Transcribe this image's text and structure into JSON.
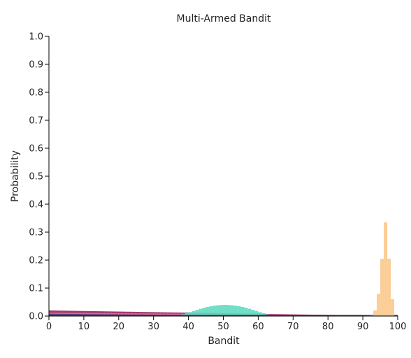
{
  "chart_data": {
    "type": "bar",
    "title": "Multi-Armed Bandit",
    "xlabel": "Bandit",
    "ylabel": "Probability",
    "xlim": [
      0,
      100
    ],
    "ylim": [
      0,
      1
    ],
    "x_ticks": [
      "0",
      "10",
      "20",
      "30",
      "40",
      "50",
      "60",
      "70",
      "80",
      "90",
      "100"
    ],
    "y_ticks": [
      "0.0",
      "0.1",
      "0.2",
      "0.3",
      "0.4",
      "0.5",
      "0.6",
      "0.7",
      "0.8",
      "0.9",
      "1.0"
    ],
    "grid": false,
    "legend": "none",
    "categories": [
      0,
      1,
      2,
      3,
      4,
      5,
      6,
      7,
      8,
      9,
      10,
      11,
      12,
      13,
      14,
      15,
      16,
      17,
      18,
      19,
      20,
      21,
      22,
      23,
      24,
      25,
      26,
      27,
      28,
      29,
      30,
      31,
      32,
      33,
      34,
      35,
      36,
      37,
      38,
      39,
      40,
      41,
      42,
      43,
      44,
      45,
      46,
      47,
      48,
      49,
      50,
      51,
      52,
      53,
      54,
      55,
      56,
      57,
      58,
      59,
      60,
      61,
      62,
      63,
      64,
      65,
      66,
      67,
      68,
      69,
      70,
      71,
      72,
      73,
      74,
      75,
      76,
      77,
      78,
      79,
      80,
      81,
      82,
      83,
      84,
      85,
      86,
      87,
      88,
      89,
      90,
      91,
      92,
      93,
      94,
      95,
      96,
      97,
      98,
      99
    ],
    "series": [
      {
        "color": "#9b2258",
        "values": [
          0.02,
          0.0198,
          0.0196,
          0.0194,
          0.0192,
          0.019,
          0.0188,
          0.0186,
          0.0184,
          0.0182,
          0.018,
          0.0178,
          0.0176,
          0.0174,
          0.0172,
          0.017,
          0.0168,
          0.0166,
          0.0164,
          0.0162,
          0.016,
          0.0158,
          0.0156,
          0.0154,
          0.0152,
          0.015,
          0.0148,
          0.0146,
          0.0144,
          0.0142,
          0.014,
          0.0138,
          0.0136,
          0.0134,
          0.0132,
          0.013,
          0.0128,
          0.0126,
          0.0124,
          0.0122,
          0.012,
          0.0118,
          0.0116,
          0.0114,
          0.0112,
          0.011,
          0.0108,
          0.0106,
          0.0104,
          0.0102,
          0.01,
          0.0098,
          0.0096,
          0.0094,
          0.0092,
          0.009,
          0.0088,
          0.0086,
          0.0084,
          0.0082,
          0.008,
          0.0078,
          0.0076,
          0.0074,
          0.0072,
          0.007,
          0.0068,
          0.0066,
          0.0064,
          0.0062,
          0.006,
          0.0058,
          0.0056,
          0.0054,
          0.0052,
          0.005,
          0.0048,
          0.0046,
          0.0044,
          0.0042,
          0.004,
          0.0038,
          0.0036,
          0.0034,
          0.0032,
          0.003,
          0.0028,
          0.0026,
          0.0024,
          0.0022,
          0.002,
          0.0018,
          0.0016,
          0.0014,
          0.0012,
          0.001,
          0.0008,
          0.0006,
          0.0004,
          0.0002
        ]
      },
      {
        "color": "#e26aa0",
        "values": [
          0.012,
          0.0119,
          0.0118,
          0.0117,
          0.0116,
          0.0115,
          0.0114,
          0.0113,
          0.0112,
          0.0111,
          0.011,
          0.0109,
          0.0108,
          0.0107,
          0.0106,
          0.0105,
          0.0104,
          0.0103,
          0.0102,
          0.0101,
          0.01,
          0.0099,
          0.0098,
          0.0097,
          0.0096,
          0.0095,
          0.0094,
          0.0093,
          0.0092,
          0.0091,
          0.009,
          0.0089,
          0.0088,
          0.0087,
          0.0086,
          0.0085,
          0.0084,
          0.0083,
          0.0082,
          0.0081,
          0.008,
          0.0079,
          0.0078,
          0.0077,
          0.0076,
          0.0075,
          0.0074,
          0.0073,
          0.0072,
          0.0071,
          0.007,
          0.0069,
          0.0068,
          0.0067,
          0.0066,
          0.0065,
          0.0064,
          0.0063,
          0.0062,
          0.0061,
          0.006,
          0.0059,
          0.0058,
          0.0057,
          0.0056,
          0.0055,
          0.0054,
          0.0053,
          0.0052,
          0.0051,
          0.005,
          0.0049,
          0.0048,
          0.0047,
          0.0046,
          0.0045,
          0.0044,
          0.0043,
          0.0042,
          0.0041,
          0.004,
          0.0039,
          0.0038,
          0.0037,
          0.0036,
          0.0035,
          0.0034,
          0.0033,
          0.0032,
          0.0031,
          0.003,
          0.0029,
          0.0028,
          0.0027,
          0.0026,
          0.0025,
          0.0024,
          0.0023,
          0.0022,
          0.0021
        ]
      },
      {
        "color": "#5fdcc0",
        "values": [
          0.0,
          0.0,
          0.0,
          0.0,
          0.0,
          0.0,
          0.0,
          0.0,
          0.0,
          0.0,
          0.0,
          0.0,
          0.0,
          0.0,
          0.0,
          0.0,
          0.0,
          0.0,
          0.0,
          0.0,
          0.0,
          0.0,
          0.0,
          0.0,
          0.0,
          0.0,
          0.0,
          0.0,
          0.0,
          0.0,
          0.0,
          0.0,
          0.0,
          0.0,
          0.0,
          0.001,
          0.002,
          0.004,
          0.0065,
          0.01,
          0.014,
          0.018,
          0.022,
          0.026,
          0.0295,
          0.0325,
          0.035,
          0.037,
          0.0385,
          0.0395,
          0.04,
          0.0395,
          0.0385,
          0.037,
          0.035,
          0.0325,
          0.0295,
          0.026,
          0.022,
          0.018,
          0.014,
          0.01,
          0.0065,
          0.004,
          0.002,
          0.0,
          0.0,
          0.0,
          0.0,
          0.0,
          0.0,
          0.0,
          0.0,
          0.0,
          0.0,
          0.0,
          0.0,
          0.0,
          0.0,
          0.0,
          0.0,
          0.0,
          0.0,
          0.0,
          0.0,
          0.0,
          0.0,
          0.0,
          0.0,
          0.0,
          0.0,
          0.0,
          0.0,
          0.0,
          0.0,
          0.0,
          0.0,
          0.0,
          0.0,
          0.0
        ]
      },
      {
        "color": "#4b3a78",
        "values": [
          0.008,
          0.0079,
          0.0078,
          0.0077,
          0.0076,
          0.0075,
          0.0074,
          0.0073,
          0.0072,
          0.0071,
          0.007,
          0.0069,
          0.0068,
          0.0067,
          0.0066,
          0.0065,
          0.0064,
          0.0063,
          0.0062,
          0.0061,
          0.006,
          0.0059,
          0.0058,
          0.0057,
          0.0056,
          0.0055,
          0.0054,
          0.0053,
          0.0052,
          0.0051,
          0.005,
          0.0049,
          0.0048,
          0.0047,
          0.0046,
          0.0045,
          0.0044,
          0.0043,
          0.0042,
          0.0041,
          0.004,
          0.004,
          0.004,
          0.004,
          0.004,
          0.004,
          0.004,
          0.004,
          0.004,
          0.004,
          0.004,
          0.004,
          0.004,
          0.004,
          0.004,
          0.004,
          0.004,
          0.004,
          0.004,
          0.004,
          0.004,
          0.004,
          0.004,
          0.004,
          0.004,
          0.004,
          0.004,
          0.004,
          0.004,
          0.004,
          0.004,
          0.004,
          0.004,
          0.004,
          0.004,
          0.004,
          0.004,
          0.004,
          0.004,
          0.004,
          0.004,
          0.004,
          0.004,
          0.004,
          0.004,
          0.004,
          0.004,
          0.004,
          0.004,
          0.004,
          0.004,
          0.004,
          0.004,
          0.004,
          0.004,
          0.004,
          0.004,
          0.004,
          0.004,
          0.004
        ]
      },
      {
        "color": "#fcc98c",
        "values": [
          0.0,
          0.0,
          0.0,
          0.0,
          0.0,
          0.0,
          0.0,
          0.0,
          0.0,
          0.0,
          0.0,
          0.0,
          0.0,
          0.0,
          0.0,
          0.0,
          0.0,
          0.0,
          0.0,
          0.0,
          0.0,
          0.0,
          0.0,
          0.0,
          0.0,
          0.0,
          0.0,
          0.0,
          0.0,
          0.0,
          0.0,
          0.0,
          0.0,
          0.0,
          0.0,
          0.0,
          0.0,
          0.0,
          0.0,
          0.0,
          0.0,
          0.0,
          0.0,
          0.0,
          0.0,
          0.0,
          0.0,
          0.0,
          0.0,
          0.0,
          0.0,
          0.0,
          0.0,
          0.0,
          0.0,
          0.0,
          0.0,
          0.0,
          0.0,
          0.0,
          0.0,
          0.0,
          0.0,
          0.0,
          0.0,
          0.0,
          0.0,
          0.0,
          0.0,
          0.0,
          0.0,
          0.0,
          0.0,
          0.0,
          0.0,
          0.0,
          0.0,
          0.0,
          0.0,
          0.0,
          0.0,
          0.0,
          0.0,
          0.0,
          0.0,
          0.0,
          0.0,
          0.0,
          0.0,
          0.0,
          0.0,
          0.0,
          0.002,
          0.02,
          0.08,
          0.205,
          0.335,
          0.205,
          0.06,
          0.0
        ]
      }
    ]
  }
}
